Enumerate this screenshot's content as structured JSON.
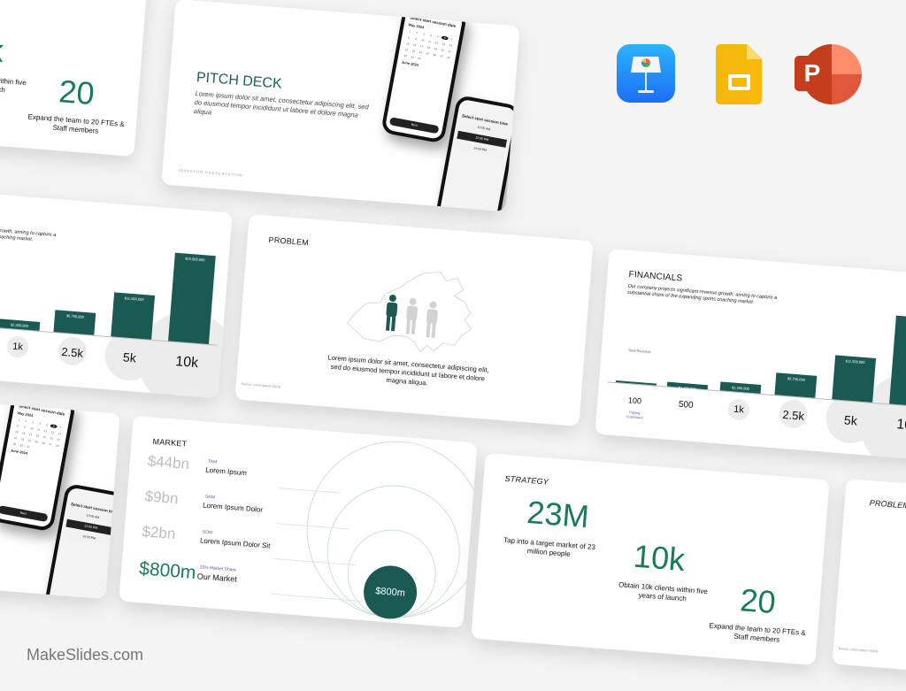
{
  "watermark": "MakeSlides.com",
  "app_icons": [
    {
      "name": "keynote-icon",
      "color": "#1f8ef5"
    },
    {
      "name": "google-slides-icon",
      "color": "#f6b90b"
    },
    {
      "name": "powerpoint-icon",
      "color": "#d35230"
    }
  ],
  "colors": {
    "accent": "#1a5a52",
    "stat_green": "#1b7a5c"
  },
  "slides": {
    "pitch_deck": {
      "title": "PITCH DECK",
      "body": "Lorem ipsum dolor sit amet, consectetur adipiscing elit, sed do eiusmod tempor incididunt ut labore et dolore magna aliqua",
      "footer": "INVESTOR PRESENTATION"
    },
    "phones": {
      "date_title": "Select start session date",
      "months": [
        "May 2024",
        "June 2024"
      ],
      "selected_day": "6",
      "next_label": "Next",
      "time_title": "Select start session time",
      "times": [
        "10:00 AM",
        "12:00 PM",
        "14:00 PM"
      ]
    },
    "financials": {
      "title": "FINANCIALS",
      "body": "Our company projects significant revenue growth, aiming to capture a substantial share of the expanding sports coaching market.",
      "revenue_label": "Total Revenue",
      "customers_label": "Paying Customers",
      "customers": [
        "100",
        "500",
        "1k",
        "2.5k",
        "5k",
        "10k"
      ],
      "revenue": [
        230000,
        1150000,
        2300000,
        5750000,
        11500000,
        23000000
      ],
      "revenue_labels": [
        "",
        "$1,150,000",
        "$2,300,000",
        "$5,750,000",
        "$11,500,000",
        "$23,000,000"
      ]
    },
    "problem": {
      "title": "PROBLEM",
      "body": "Lorem ipsum dolor sit amet, consectetur adipiscing elit, sed do eiusmod tempor incididunt ut labore et dolore magna aliqua.",
      "source": "Source: Lorem Ipsum (2024)"
    },
    "market": {
      "title": "MARKET",
      "rows": [
        {
          "value": "$44bn",
          "tag": "TAM",
          "text": "Lorem Ipsum"
        },
        {
          "value": "$9bn",
          "tag": "SAM",
          "text": "Lorem Ipsum Dolor"
        },
        {
          "value": "$2bn",
          "tag": "SOM",
          "text": "Lorem Ipsum Dolor Sit"
        },
        {
          "value": "$800m",
          "tag": "10% Market Share",
          "text": "Our Market"
        }
      ],
      "circle_label": "$800m"
    },
    "strategy": {
      "title": "STRATEGY",
      "stats": [
        {
          "value": "23M",
          "text": "Tap into a target market of 23 million people"
        },
        {
          "value": "10k",
          "text": "Obtain 10k clients within five years of launch"
        },
        {
          "value": "20",
          "text": "Expand the team to 20 FTEs & Staff members"
        }
      ]
    }
  }
}
